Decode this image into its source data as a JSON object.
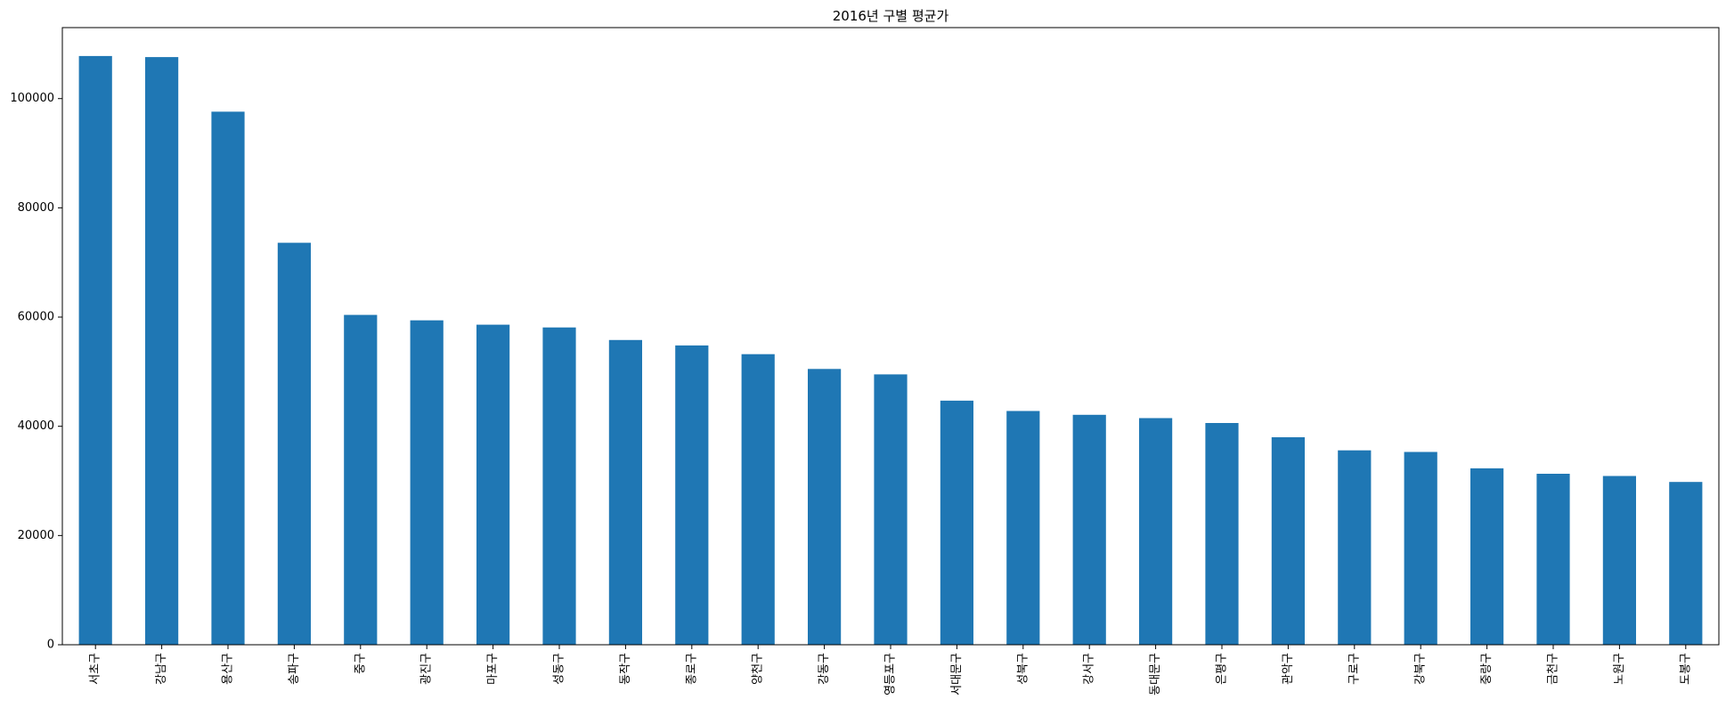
{
  "chart_data": {
    "type": "bar",
    "title": "2016년 구별 평균가",
    "xlabel": "",
    "ylabel": "",
    "categories": [
      "서초구",
      "강남구",
      "용산구",
      "송파구",
      "중구",
      "광진구",
      "마포구",
      "성동구",
      "동작구",
      "종로구",
      "양천구",
      "강동구",
      "영등포구",
      "서대문구",
      "성북구",
      "강서구",
      "동대문구",
      "은평구",
      "관악구",
      "구로구",
      "강북구",
      "중랑구",
      "금천구",
      "노원구",
      "도봉구"
    ],
    "values": [
      107800,
      107600,
      97600,
      73600,
      60400,
      59400,
      58600,
      58100,
      55800,
      54800,
      53200,
      50500,
      49500,
      44700,
      42800,
      42100,
      41500,
      40600,
      38000,
      35600,
      35300,
      32300,
      31300,
      30900,
      29800
    ],
    "ylim": [
      0,
      113000
    ],
    "yticks": [
      0,
      20000,
      40000,
      60000,
      80000,
      100000
    ],
    "grid": false,
    "legend": "none",
    "bar_color": "#1f77b4"
  }
}
